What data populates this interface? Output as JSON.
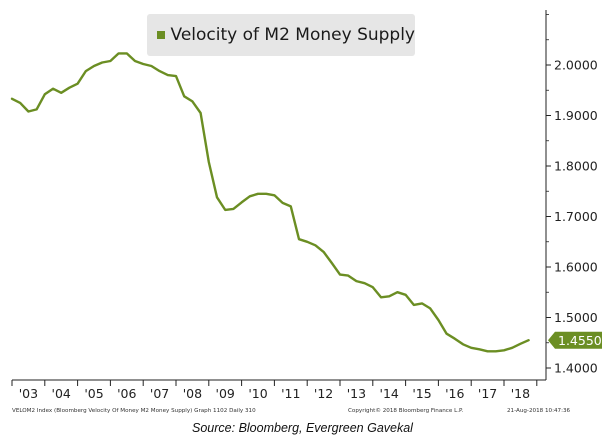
{
  "chart_data": {
    "type": "line",
    "title": "",
    "xlabel": "",
    "ylabel": "",
    "legend_placement": "top-left",
    "grid": false,
    "x_tick_labels": [
      "'03",
      "'04",
      "'05",
      "'06",
      "'07",
      "'08",
      "'09",
      "'10",
      "'11",
      "'12",
      "'13",
      "'14",
      "'15",
      "'16",
      "'17",
      "'18"
    ],
    "y_tick_labels": [
      "1.4000",
      "1.5000",
      "1.6000",
      "1.7000",
      "1.8000",
      "1.9000",
      "2.0000"
    ],
    "y_ticks": [
      1.4,
      1.5,
      1.6,
      1.7,
      1.8,
      1.9,
      2.0
    ],
    "xlim": [
      2002.5,
      2018.75
    ],
    "ylim": [
      1.37,
      2.1
    ],
    "series": [
      {
        "name": "Velocity of M2 Money Supply",
        "color": "#6b8e23",
        "x": [
          2002.5,
          2002.75,
          2003.0,
          2003.25,
          2003.5,
          2003.75,
          2004.0,
          2004.25,
          2004.5,
          2004.75,
          2005.0,
          2005.25,
          2005.5,
          2005.75,
          2006.0,
          2006.25,
          2006.5,
          2006.75,
          2007.0,
          2007.25,
          2007.5,
          2007.75,
          2008.0,
          2008.25,
          2008.5,
          2008.75,
          2009.0,
          2009.25,
          2009.5,
          2009.75,
          2010.0,
          2010.25,
          2010.5,
          2010.75,
          2011.0,
          2011.25,
          2011.5,
          2011.75,
          2012.0,
          2012.25,
          2012.5,
          2012.75,
          2013.0,
          2013.25,
          2013.5,
          2013.75,
          2014.0,
          2014.25,
          2014.5,
          2014.75,
          2015.0,
          2015.25,
          2015.5,
          2015.75,
          2016.0,
          2016.25,
          2016.5,
          2016.75,
          2017.0,
          2017.25,
          2017.5,
          2017.75,
          2018.0,
          2018.25
        ],
        "values": [
          1.933,
          1.925,
          1.908,
          1.912,
          1.942,
          1.953,
          1.945,
          1.955,
          1.963,
          1.988,
          1.998,
          2.005,
          2.008,
          2.023,
          2.023,
          2.008,
          2.002,
          1.998,
          1.988,
          1.98,
          1.978,
          1.938,
          1.928,
          1.905,
          1.808,
          1.738,
          1.713,
          1.715,
          1.728,
          1.74,
          1.745,
          1.745,
          1.742,
          1.727,
          1.72,
          1.655,
          1.65,
          1.643,
          1.63,
          1.608,
          1.585,
          1.583,
          1.572,
          1.568,
          1.56,
          1.54,
          1.542,
          1.55,
          1.545,
          1.525,
          1.528,
          1.518,
          1.495,
          1.468,
          1.458,
          1.447,
          1.44,
          1.437,
          1.433,
          1.433,
          1.435,
          1.44,
          1.448,
          1.455
        ]
      }
    ],
    "last_value_label": "1.4550"
  },
  "legend": {
    "label": "Velocity of M2 Money Supply",
    "color": "#6b8e23"
  },
  "footer": {
    "left": "VELOM2 Index (Bloomberg Velocity Of Money M2 Money Supply) Graph 1102  Daily 310",
    "mid": "Copyright© 2018 Bloomberg Finance L.P.",
    "right": "21-Aug-2018 10:47:36"
  },
  "source": "Source: Bloomberg, Evergreen Gavekal"
}
